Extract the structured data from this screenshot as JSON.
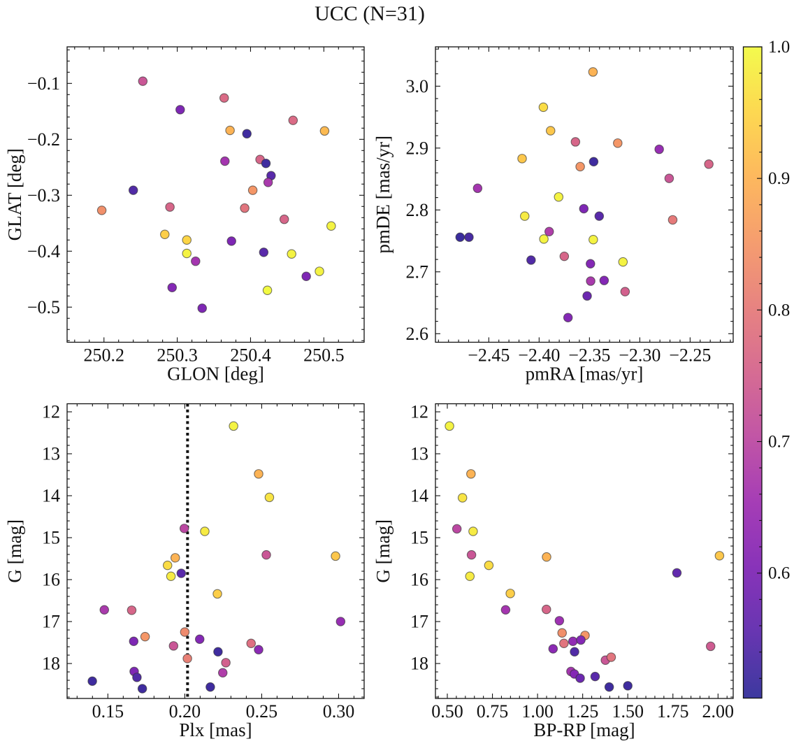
{
  "title": "UCC (N=31)",
  "colorbar": {
    "colormap": "plasma",
    "vmin": 0.505,
    "vmax": 1.0,
    "ticks": [
      1.0,
      0.9,
      0.8,
      0.7,
      0.6
    ],
    "tick_labels": [
      "1.0",
      "0.9",
      "0.8",
      "0.7",
      "0.6"
    ],
    "minor_step": 0.02
  },
  "chart_data": [
    {
      "type": "scatter",
      "name": "position",
      "xlabel": "GLON [deg]",
      "ylabel": "GLAT [deg]",
      "xlim": [
        250.1497,
        250.555
      ],
      "ylim": [
        -0.5628,
        -0.0346
      ],
      "xticks": [
        250.2,
        250.3,
        250.4,
        250.5
      ],
      "xtick_labels": [
        "250.2",
        "250.3",
        "250.4",
        "250.5"
      ],
      "yticks": [
        -0.1,
        -0.2,
        -0.3,
        -0.4,
        -0.5
      ],
      "ytick_labels": [
        "−0.1",
        "−0.2",
        "−0.3",
        "−0.4",
        "−0.5"
      ],
      "x_minor_step": 0.02,
      "y_minor_step": 0.02,
      "points": [
        [
          250.253,
          -0.096,
          0.73
        ],
        [
          250.364,
          -0.126,
          0.77
        ],
        [
          250.304,
          -0.147,
          0.6
        ],
        [
          250.458,
          -0.166,
          0.77
        ],
        [
          250.372,
          -0.184,
          0.9
        ],
        [
          250.501,
          -0.185,
          0.91
        ],
        [
          250.395,
          -0.19,
          0.52
        ],
        [
          250.365,
          -0.239,
          0.66
        ],
        [
          250.413,
          -0.236,
          0.76
        ],
        [
          250.421,
          -0.243,
          0.52
        ],
        [
          250.428,
          -0.265,
          0.55
        ],
        [
          250.424,
          -0.277,
          0.67
        ],
        [
          250.403,
          -0.291,
          0.85
        ],
        [
          250.24,
          -0.291,
          0.54
        ],
        [
          250.197,
          -0.327,
          0.84
        ],
        [
          250.29,
          -0.321,
          0.76
        ],
        [
          250.392,
          -0.323,
          0.79
        ],
        [
          250.446,
          -0.343,
          0.76
        ],
        [
          250.51,
          -0.355,
          0.99
        ],
        [
          250.283,
          -0.37,
          0.94
        ],
        [
          250.313,
          -0.38,
          0.95
        ],
        [
          250.374,
          -0.382,
          0.6
        ],
        [
          250.313,
          -0.404,
          0.99
        ],
        [
          250.418,
          -0.402,
          0.55
        ],
        [
          250.456,
          -0.405,
          0.99
        ],
        [
          250.325,
          -0.418,
          0.66
        ],
        [
          250.476,
          -0.445,
          0.6
        ],
        [
          250.494,
          -0.436,
          0.99
        ],
        [
          250.293,
          -0.465,
          0.61
        ],
        [
          250.423,
          -0.47,
          1.0
        ],
        [
          250.334,
          -0.502,
          0.6
        ]
      ]
    },
    {
      "type": "scatter",
      "name": "proper-motion",
      "xlabel": "pmRA [mas/yr]",
      "ylabel": "pmDE [mas/yr]",
      "xlim": [
        -2.503,
        -2.2072
      ],
      "ylim": [
        2.5862,
        3.0636
      ],
      "xticks": [
        -2.45,
        -2.4,
        -2.35,
        -2.3,
        -2.25
      ],
      "xtick_labels": [
        "−2.45",
        "−2.40",
        "−2.35",
        "−2.30",
        "−2.25"
      ],
      "yticks": [
        2.6,
        2.7,
        2.8,
        2.9,
        3.0
      ],
      "ytick_labels": [
        "2.6",
        "2.7",
        "2.8",
        "2.9",
        "3.0"
      ],
      "x_minor_step": 0.01,
      "y_minor_step": 0.02,
      "points": [
        [
          -2.3465,
          3.023,
          0.9
        ],
        [
          -2.3958,
          2.966,
          0.96
        ],
        [
          -2.3886,
          2.928,
          0.93
        ],
        [
          -2.3639,
          2.91,
          0.76
        ],
        [
          -2.3219,
          2.908,
          0.85
        ],
        [
          -2.2807,
          2.898,
          0.64
        ],
        [
          -2.4169,
          2.883,
          0.93
        ],
        [
          -2.2314,
          2.874,
          0.76
        ],
        [
          -2.3592,
          2.87,
          0.85
        ],
        [
          -2.3458,
          2.878,
          0.52
        ],
        [
          -2.2708,
          2.851,
          0.73
        ],
        [
          -2.4611,
          2.835,
          0.66
        ],
        [
          -2.3806,
          2.821,
          0.99
        ],
        [
          -2.3556,
          2.802,
          0.6
        ],
        [
          -2.3403,
          2.79,
          0.55
        ],
        [
          -2.4143,
          2.79,
          0.98
        ],
        [
          -2.2673,
          2.784,
          0.8
        ],
        [
          -2.4785,
          2.756,
          0.515
        ],
        [
          -2.4697,
          2.756,
          0.53
        ],
        [
          -2.39,
          2.765,
          0.68
        ],
        [
          -2.3953,
          2.753,
          0.99
        ],
        [
          -2.3462,
          2.752,
          0.99
        ],
        [
          -2.408,
          2.719,
          0.54
        ],
        [
          -2.375,
          2.725,
          0.76
        ],
        [
          -2.349,
          2.713,
          0.61
        ],
        [
          -2.3167,
          2.716,
          0.99
        ],
        [
          -2.3488,
          2.685,
          0.67
        ],
        [
          -2.3354,
          2.686,
          0.61
        ],
        [
          -2.3146,
          2.668,
          0.75
        ],
        [
          -2.3523,
          2.661,
          0.575
        ],
        [
          -2.3713,
          2.626,
          0.61
        ]
      ]
    },
    {
      "type": "scatter",
      "name": "parallax-magnitude",
      "xlabel": "Plx [mas]",
      "ylabel": "G [mag]",
      "xlim": [
        0.1235,
        0.3166
      ],
      "ylim": [
        18.833,
        11.808
      ],
      "xticks": [
        0.15,
        0.2,
        0.25,
        0.3
      ],
      "xtick_labels": [
        "0.15",
        "0.20",
        "0.25",
        "0.30"
      ],
      "yticks": [
        12,
        13,
        14,
        15,
        16,
        17,
        18
      ],
      "ytick_labels": [
        "12",
        "13",
        "14",
        "15",
        "16",
        "17",
        "18"
      ],
      "x_minor_step": 0.01,
      "y_minor_step": 0.2,
      "vline": {
        "x": 0.2018,
        "style": "dotted",
        "color": "#111111",
        "width": 4
      },
      "points": [
        [
          0.2317,
          12.34,
          0.99
        ],
        [
          0.248,
          13.48,
          0.9
        ],
        [
          0.255,
          14.04,
          0.97
        ],
        [
          0.1997,
          14.78,
          0.7
        ],
        [
          0.213,
          14.85,
          0.98
        ],
        [
          0.253,
          15.41,
          0.73
        ],
        [
          0.298,
          15.44,
          0.93
        ],
        [
          0.1938,
          15.48,
          0.9
        ],
        [
          0.1888,
          15.66,
          0.96
        ],
        [
          0.1977,
          15.85,
          0.55
        ],
        [
          0.191,
          15.92,
          0.98
        ],
        [
          0.2212,
          16.34,
          0.94
        ],
        [
          0.1477,
          16.72,
          0.67
        ],
        [
          0.1655,
          16.73,
          0.76
        ],
        [
          0.3013,
          17.0,
          0.64
        ],
        [
          0.2,
          17.25,
          0.83
        ],
        [
          0.1742,
          17.36,
          0.85
        ],
        [
          0.2097,
          17.42,
          0.61
        ],
        [
          0.1668,
          17.47,
          0.6
        ],
        [
          0.1927,
          17.58,
          0.73
        ],
        [
          0.2431,
          17.52,
          0.78
        ],
        [
          0.248,
          17.67,
          0.62
        ],
        [
          0.2216,
          17.72,
          0.52
        ],
        [
          0.2017,
          17.88,
          0.81
        ],
        [
          0.2267,
          17.98,
          0.75
        ],
        [
          0.2247,
          18.22,
          0.68
        ],
        [
          0.1671,
          18.19,
          0.6
        ],
        [
          0.1689,
          18.33,
          0.54
        ],
        [
          0.1399,
          18.42,
          0.52
        ],
        [
          0.1724,
          18.6,
          0.52
        ],
        [
          0.2166,
          18.56,
          0.52
        ]
      ]
    },
    {
      "type": "scatter",
      "name": "color-magnitude",
      "xlabel": "BP-RP [mag]",
      "ylabel": "G [mag]",
      "xlim": [
        0.4342,
        2.084
      ],
      "ylim": [
        18.833,
        11.808
      ],
      "xticks": [
        0.5,
        0.75,
        1.0,
        1.25,
        1.5,
        1.75,
        2.0
      ],
      "xtick_labels": [
        "0.50",
        "0.75",
        "1.00",
        "1.25",
        "1.50",
        "1.75",
        "2.00"
      ],
      "yticks": [
        12,
        13,
        14,
        15,
        16,
        17,
        18
      ],
      "ytick_labels": [
        "12",
        "13",
        "14",
        "15",
        "16",
        "17",
        "18"
      ],
      "x_minor_step": 0.05,
      "y_minor_step": 0.2,
      "points": [
        [
          0.512,
          12.34,
          0.99
        ],
        [
          0.631,
          13.48,
          0.9
        ],
        [
          0.584,
          14.05,
          0.97
        ],
        [
          0.553,
          14.79,
          0.7
        ],
        [
          0.643,
          14.85,
          0.98
        ],
        [
          0.634,
          15.41,
          0.73
        ],
        [
          1.05,
          15.46,
          0.9
        ],
        [
          2.008,
          15.43,
          0.93
        ],
        [
          0.73,
          15.66,
          0.96
        ],
        [
          1.772,
          15.84,
          0.56
        ],
        [
          0.625,
          15.92,
          0.98
        ],
        [
          0.849,
          16.33,
          0.94
        ],
        [
          0.823,
          16.72,
          0.66
        ],
        [
          1.049,
          16.71,
          0.76
        ],
        [
          1.121,
          16.98,
          0.65
        ],
        [
          1.136,
          17.27,
          0.84
        ],
        [
          1.263,
          17.33,
          0.85
        ],
        [
          1.146,
          17.52,
          0.79
        ],
        [
          1.196,
          17.47,
          0.63
        ],
        [
          1.24,
          17.44,
          0.61
        ],
        [
          1.086,
          17.65,
          0.62
        ],
        [
          1.205,
          17.72,
          0.54
        ],
        [
          1.376,
          17.92,
          0.73
        ],
        [
          1.408,
          17.85,
          0.79
        ],
        [
          1.185,
          18.19,
          0.66
        ],
        [
          1.204,
          18.25,
          0.61
        ],
        [
          1.236,
          18.35,
          0.575
        ],
        [
          1.319,
          18.31,
          0.55
        ],
        [
          1.397,
          18.56,
          0.52
        ],
        [
          1.5,
          18.53,
          0.52
        ],
        [
          1.959,
          17.59,
          0.74
        ]
      ]
    }
  ]
}
